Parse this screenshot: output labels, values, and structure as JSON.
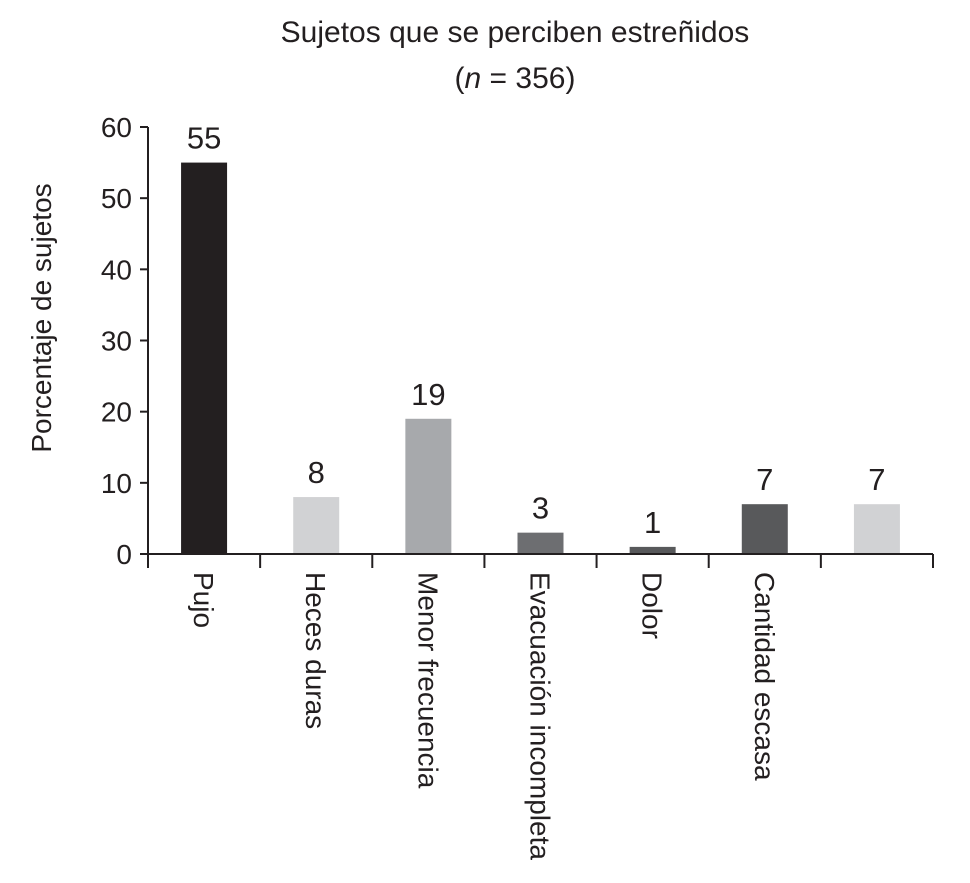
{
  "chart_data": {
    "type": "bar",
    "title": "Sujetos que se perciben estreñidos",
    "subtitle": {
      "open": "(",
      "n": "n",
      "rest": " = 356)"
    },
    "ylabel": "Porcentaje de sujetos",
    "xlabel": "",
    "ylim": [
      0,
      60
    ],
    "yticks": [
      "0",
      "10",
      "20",
      "30",
      "40",
      "50",
      "60"
    ],
    "categories": [
      "Pujo",
      "Heces duras",
      "Menor frecuencia",
      "Evacuación incompleta",
      "Dolor",
      "Cantidad escasa",
      ""
    ],
    "values": [
      55,
      8,
      19,
      3,
      1,
      7,
      7
    ],
    "data_labels": [
      "55",
      "8",
      "19",
      "3",
      "1",
      "7",
      "7"
    ],
    "bar_colors": [
      "#231f20",
      "#d1d2d4",
      "#a7a9ac",
      "#6d6e71",
      "#58595b",
      "#58595b",
      "#d1d2d4"
    ],
    "grid": false,
    "legend": "none"
  }
}
